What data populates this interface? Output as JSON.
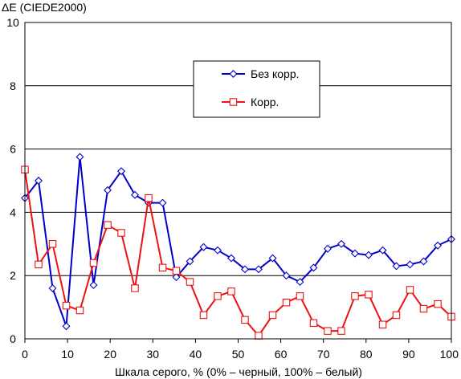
{
  "chart_data": {
    "type": "line",
    "ylabel": "ΔE (CIEDE2000)",
    "xlabel": "Шкала серого, % (0% – черный, 100% – белый)",
    "xlim": [
      0,
      100
    ],
    "ylim": [
      0,
      10
    ],
    "x_ticks": [
      0,
      10,
      20,
      30,
      40,
      50,
      60,
      70,
      80,
      90,
      100
    ],
    "y_ticks": [
      0,
      2,
      4,
      6,
      8,
      10
    ],
    "x_tick_labels": [
      "0",
      "10",
      "20",
      "30",
      "40",
      "50",
      "60",
      "70",
      "80",
      "90",
      "100"
    ],
    "y_tick_labels": [
      "0",
      "2",
      "4",
      "6",
      "8",
      "10"
    ],
    "grid": "horizontal",
    "legend_position": "top-center",
    "series": [
      {
        "name": "Без корр.",
        "color": "#0000cc",
        "marker": "diamond",
        "x": [
          0,
          3.2,
          6.5,
          9.7,
          12.9,
          16.1,
          19.4,
          22.6,
          25.8,
          29,
          32.3,
          35.5,
          38.7,
          41.9,
          45.2,
          48.4,
          51.6,
          54.8,
          58.1,
          61.3,
          64.5,
          67.7,
          71,
          74.2,
          77.4,
          80.6,
          83.9,
          87.1,
          90.3,
          93.5,
          96.8,
          100
        ],
        "y": [
          4.45,
          5.0,
          1.6,
          0.4,
          5.75,
          1.7,
          4.7,
          5.3,
          4.55,
          4.3,
          4.3,
          1.95,
          2.45,
          2.9,
          2.8,
          2.55,
          2.2,
          2.2,
          2.55,
          2.0,
          1.8,
          2.25,
          2.85,
          3.0,
          2.7,
          2.65,
          2.8,
          2.3,
          2.35,
          2.45,
          2.95,
          3.15
        ]
      },
      {
        "name": "Корр.",
        "color": "#ee1111",
        "marker": "square",
        "x": [
          0,
          3.2,
          6.5,
          9.7,
          12.9,
          16.1,
          19.4,
          22.6,
          25.8,
          29,
          32.3,
          35.5,
          38.7,
          41.9,
          45.2,
          48.4,
          51.6,
          54.8,
          58.1,
          61.3,
          64.5,
          67.7,
          71,
          74.2,
          77.4,
          80.6,
          83.9,
          87.1,
          90.3,
          93.5,
          96.8,
          100
        ],
        "y": [
          5.35,
          2.35,
          3.0,
          1.05,
          0.9,
          2.4,
          3.6,
          3.35,
          1.6,
          4.45,
          2.25,
          2.15,
          1.8,
          0.75,
          1.35,
          1.5,
          0.6,
          0.1,
          0.75,
          1.15,
          1.35,
          0.5,
          0.25,
          0.25,
          1.35,
          1.4,
          0.45,
          0.75,
          1.55,
          0.95,
          1.1,
          0.7
        ]
      }
    ]
  }
}
